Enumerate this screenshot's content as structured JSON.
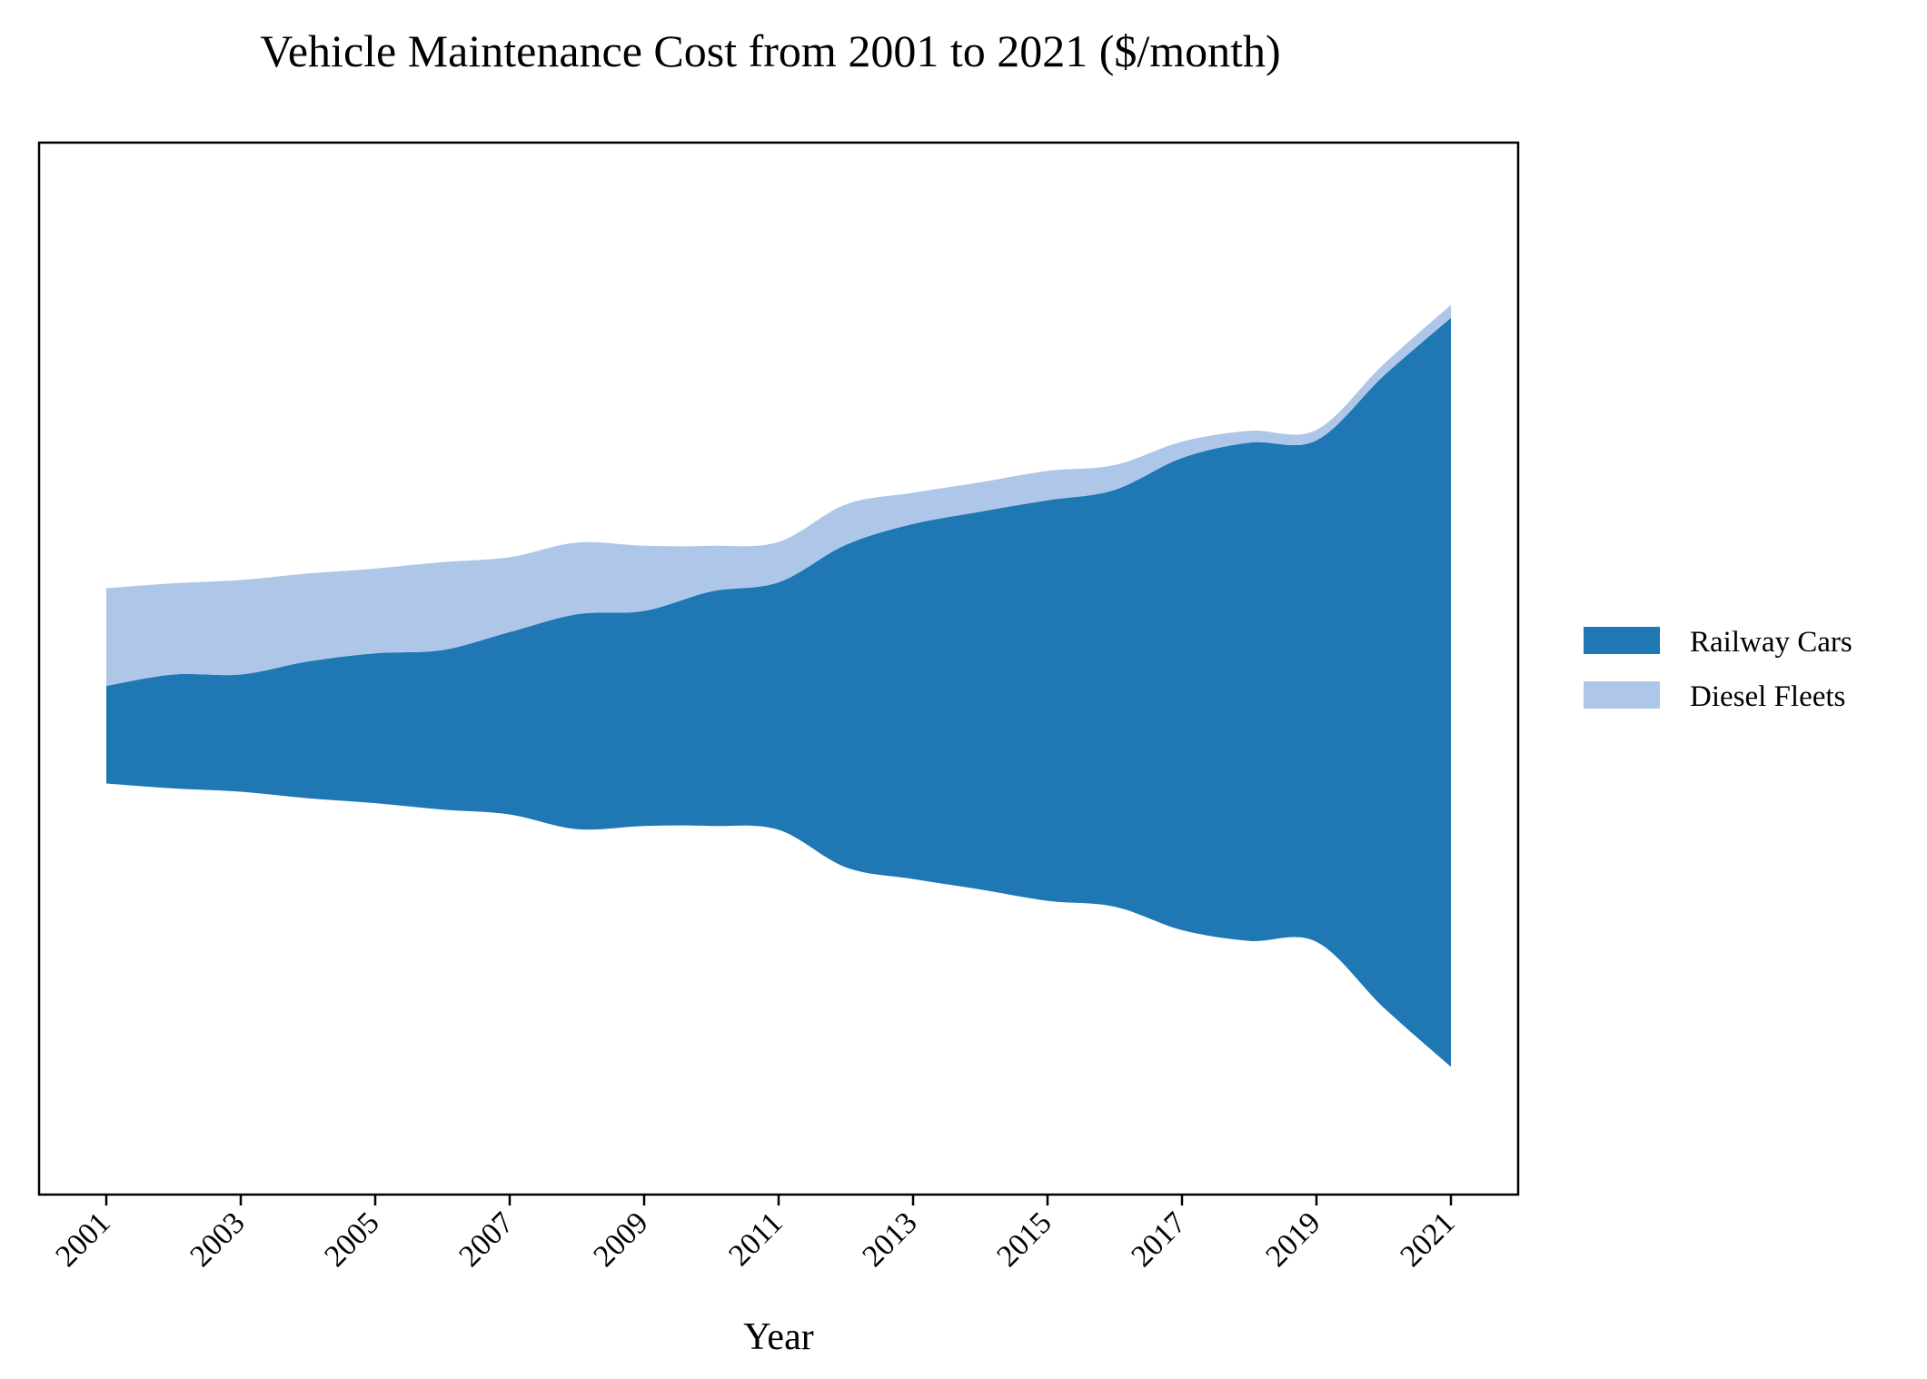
{
  "chart_data": {
    "type": "area",
    "subtype": "streamgraph",
    "title": "Vehicle Maintenance Cost from 2001 to 2021 ($/month)",
    "xlabel": "Year",
    "ylabel": "",
    "x": [
      2001,
      2002,
      2003,
      2004,
      2005,
      2006,
      2007,
      2008,
      2009,
      2010,
      2011,
      2012,
      2013,
      2014,
      2015,
      2016,
      2017,
      2018,
      2019,
      2020,
      2021
    ],
    "tick_labels": [
      "2001",
      "2003",
      "2005",
      "2007",
      "2009",
      "2011",
      "2013",
      "2015",
      "2017",
      "2019",
      "2021"
    ],
    "series": [
      {
        "name": "Railway Cars",
        "color": "#1f77b4",
        "values": [
          150,
          175,
          180,
          210,
          230,
          245,
          280,
          330,
          330,
          360,
          380,
          495,
          545,
          580,
          615,
          640,
          725,
          765,
          770,
          970,
          1150
        ]
      },
      {
        "name": "Diesel Fleets",
        "color": "#aec7e8",
        "values": [
          150,
          140,
          145,
          135,
          130,
          135,
          115,
          110,
          100,
          70,
          62,
          62,
          48,
          45,
          45,
          38,
          25,
          18,
          16,
          18,
          20
        ]
      }
    ],
    "baseline": "symmetric",
    "legend": "right",
    "grid": false,
    "y_ticks_visible": false
  }
}
